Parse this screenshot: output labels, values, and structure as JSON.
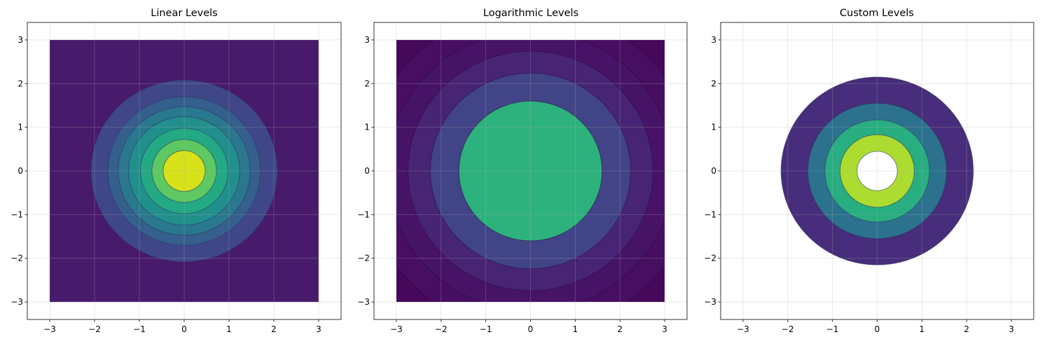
{
  "chart_data": [
    {
      "type": "contour",
      "title": "Linear Levels",
      "xlabel": "",
      "ylabel": "",
      "xlim": [
        -3.5,
        3.5
      ],
      "ylim": [
        -3.4,
        3.4
      ],
      "xticks": [
        -3,
        -2,
        -1,
        0,
        1,
        2,
        3
      ],
      "yticks": [
        -3,
        -2,
        -1,
        0,
        1,
        2,
        3
      ],
      "tick_labels_x": [
        "−3",
        "−2",
        "−1",
        "0",
        "1",
        "2",
        "3"
      ],
      "tick_labels_y": [
        "−3",
        "−2",
        "−1",
        "0",
        "1",
        "2",
        "3"
      ],
      "grid": true,
      "field_extent": [
        -3,
        3
      ],
      "background_fill": "#481a6c",
      "band_radii": [
        2.08,
        1.7,
        1.47,
        1.24,
        0.98,
        0.72,
        0.47
      ],
      "band_colors": [
        "#3f4788",
        "#355f8d",
        "#2a788e",
        "#21908d",
        "#23a983",
        "#5ec962",
        "#addc30",
        "#d8e219"
      ],
      "line_color": "#2b2f5c"
    },
    {
      "type": "contour",
      "title": "Logarithmic Levels",
      "xlabel": "",
      "ylabel": "",
      "xlim": [
        -3.5,
        3.5
      ],
      "ylim": [
        -3.4,
        3.4
      ],
      "xticks": [
        -3,
        -2,
        -1,
        0,
        1,
        2,
        3
      ],
      "yticks": [
        -3,
        -2,
        -1,
        0,
        1,
        2,
        3
      ],
      "tick_labels_x": [
        "−3",
        "−2",
        "−1",
        "0",
        "1",
        "2",
        "3"
      ],
      "tick_labels_y": [
        "−3",
        "−2",
        "−1",
        "0",
        "1",
        "2",
        "3"
      ],
      "grid": true,
      "field_extent": [
        -3,
        3
      ],
      "background_fill": "#440154",
      "band_radii": [
        4.2,
        3.7,
        3.2,
        2.74,
        2.24,
        1.6
      ],
      "band_colors": [
        "#45085b",
        "#470e61",
        "#471366",
        "#482475",
        "#414487",
        "#2db27d"
      ],
      "line_color": "#2a0a3c"
    },
    {
      "type": "contour",
      "title": "Custom Levels",
      "xlabel": "",
      "ylabel": "",
      "xlim": [
        -3.5,
        3.5
      ],
      "ylim": [
        -3.4,
        3.4
      ],
      "xticks": [
        -3,
        -2,
        -1,
        0,
        1,
        2,
        3
      ],
      "yticks": [
        -3,
        -2,
        -1,
        0,
        1,
        2,
        3
      ],
      "tick_labels_x": [
        "−3",
        "−2",
        "−1",
        "0",
        "1",
        "2",
        "3"
      ],
      "tick_labels_y": [
        "−3",
        "−2",
        "−1",
        "0",
        "1",
        "2",
        "3"
      ],
      "grid": true,
      "field_extent": null,
      "background_fill": null,
      "band_radii": [
        2.15,
        1.55,
        1.17,
        0.83
      ],
      "band_colors": [
        "#472d7b",
        "#2c728e",
        "#28ae80",
        "#addc30"
      ],
      "inner_hole_radius": 0.45,
      "line_color": "#2b2f5c"
    }
  ]
}
